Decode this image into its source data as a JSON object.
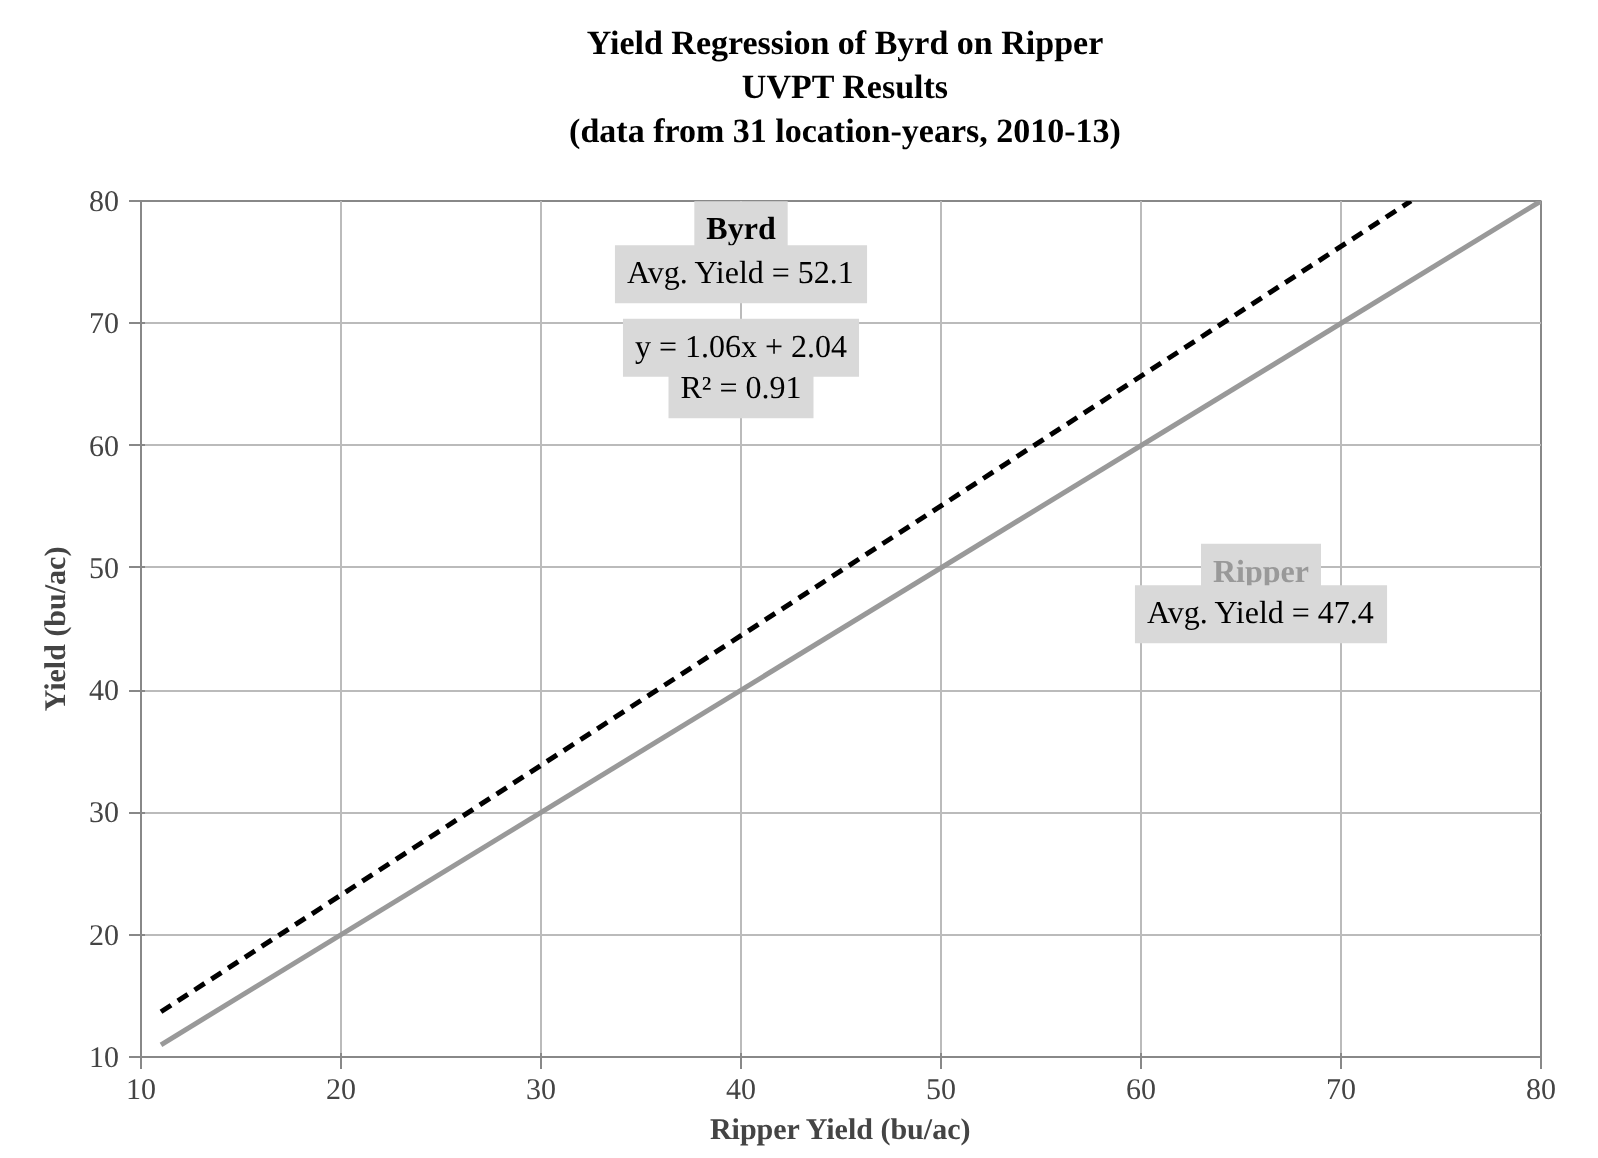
{
  "chart_data": {
    "type": "line",
    "title": "Yield Regression of Byrd on Ripper\nUVPT Results\n(data from 31 location-years,  2010-13)",
    "xlabel": "Ripper Yield (bu/ac)",
    "ylabel": "Yield (bu/ac)",
    "xlim": [
      10,
      80
    ],
    "ylim": [
      10,
      80
    ],
    "xticks": [
      10,
      20,
      30,
      40,
      50,
      60,
      70,
      80
    ],
    "yticks": [
      10,
      20,
      30,
      40,
      50,
      60,
      70,
      80
    ],
    "grid": true,
    "marker": "none",
    "series": [
      {
        "name": "Byrd",
        "color": "#000000",
        "line_style": "dashed",
        "x": [
          11,
          73.5
        ],
        "values": [
          13.7,
          80
        ]
      },
      {
        "name": "Ripper",
        "color": "#999999",
        "line_style": "solid",
        "x": [
          11,
          80
        ],
        "values": [
          11,
          80
        ]
      }
    ],
    "annotations": [
      "Avg. Yield = 52.1",
      "y = 1.06x + 2.04",
      "R² = 0.91",
      "Avg. Yield = 47.4"
    ]
  }
}
